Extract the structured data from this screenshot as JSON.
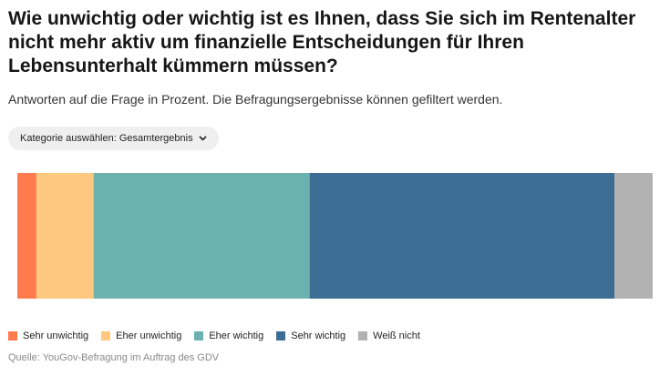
{
  "title": "Wie unwichtig oder wichtig ist es Ihnen, dass Sie sich im Rentenalter nicht mehr aktiv um finanzielle Entscheidungen für Ihren Lebensunterhalt kümmern müssen?",
  "subtitle": "Antworten auf die Frage in Prozent. Die Befragungsergebnisse können gefiltert werden.",
  "filter": {
    "label": "Kategorie auswählen:",
    "value": "Gesamtergebnis",
    "icon": "chevron-down-icon"
  },
  "source": "Quelle: YouGov-Befragung im Auftrag des GDV",
  "chart_data": {
    "type": "bar",
    "orientation": "horizontal-stacked",
    "unit": "Prozent",
    "total": 100,
    "data_labels": false,
    "grid": false,
    "legend_position": "bottom-left",
    "series": [
      {
        "name": "Sehr unwichtig",
        "value": 3,
        "color": "#ff7a4d"
      },
      {
        "name": "Eher unwichtig",
        "value": 9,
        "color": "#fec87f"
      },
      {
        "name": "Eher wichtig",
        "value": 34,
        "color": "#6bb2ae"
      },
      {
        "name": "Sehr wichtig",
        "value": 48,
        "color": "#3e6d94"
      },
      {
        "name": "Weiß nicht",
        "value": 6,
        "color": "#b1b1b1"
      }
    ]
  }
}
